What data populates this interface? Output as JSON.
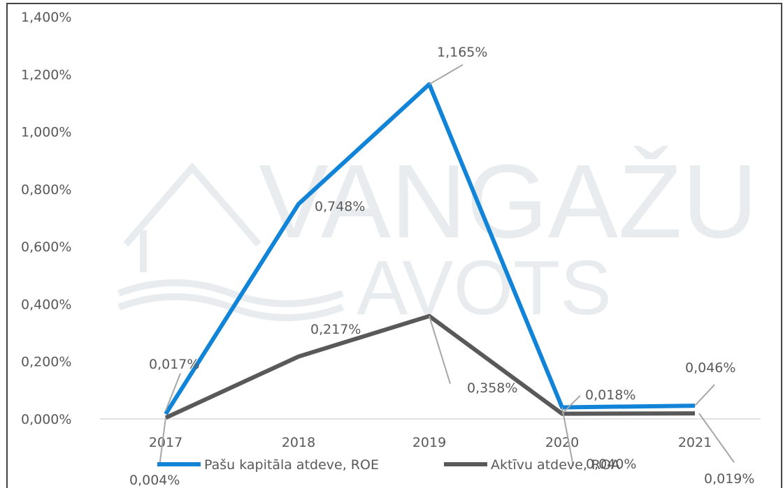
{
  "chart_data": {
    "type": "line",
    "watermark": [
      "VANGAŽU",
      "AVOTS"
    ],
    "categories": [
      "2017",
      "2018",
      "2019",
      "2020",
      "2021"
    ],
    "series": [
      {
        "name": "Pašu kapitāla atdeve, ROE",
        "color": "#1184d8",
        "values": [
          0.017,
          0.748,
          1.165,
          0.04,
          0.046
        ],
        "value_labels": [
          "0,017%",
          "0,748%",
          "1,165%",
          "0,040%",
          "0,046%"
        ]
      },
      {
        "name": "Aktīvu atdeve, ROA",
        "color": "#595959",
        "values": [
          0.004,
          0.217,
          0.358,
          0.018,
          0.019
        ],
        "value_labels": [
          "0,004%",
          "0,217%",
          "0,358%",
          "0,018%",
          "0,019%"
        ]
      }
    ],
    "ylim": [
      0,
      1.4
    ],
    "yticks": [
      {
        "value": 0,
        "label": "0,000%"
      },
      {
        "value": 0.2,
        "label": "0,200%"
      },
      {
        "value": 0.4,
        "label": "0,400%"
      },
      {
        "value": 0.6,
        "label": "0,600%"
      },
      {
        "value": 0.8,
        "label": "0,800%"
      },
      {
        "value": 1.0,
        "label": "1,000%"
      },
      {
        "value": 1.2,
        "label": "1,200%"
      },
      {
        "value": 1.4,
        "label": "1,400%"
      }
    ],
    "legend": "bottom"
  }
}
